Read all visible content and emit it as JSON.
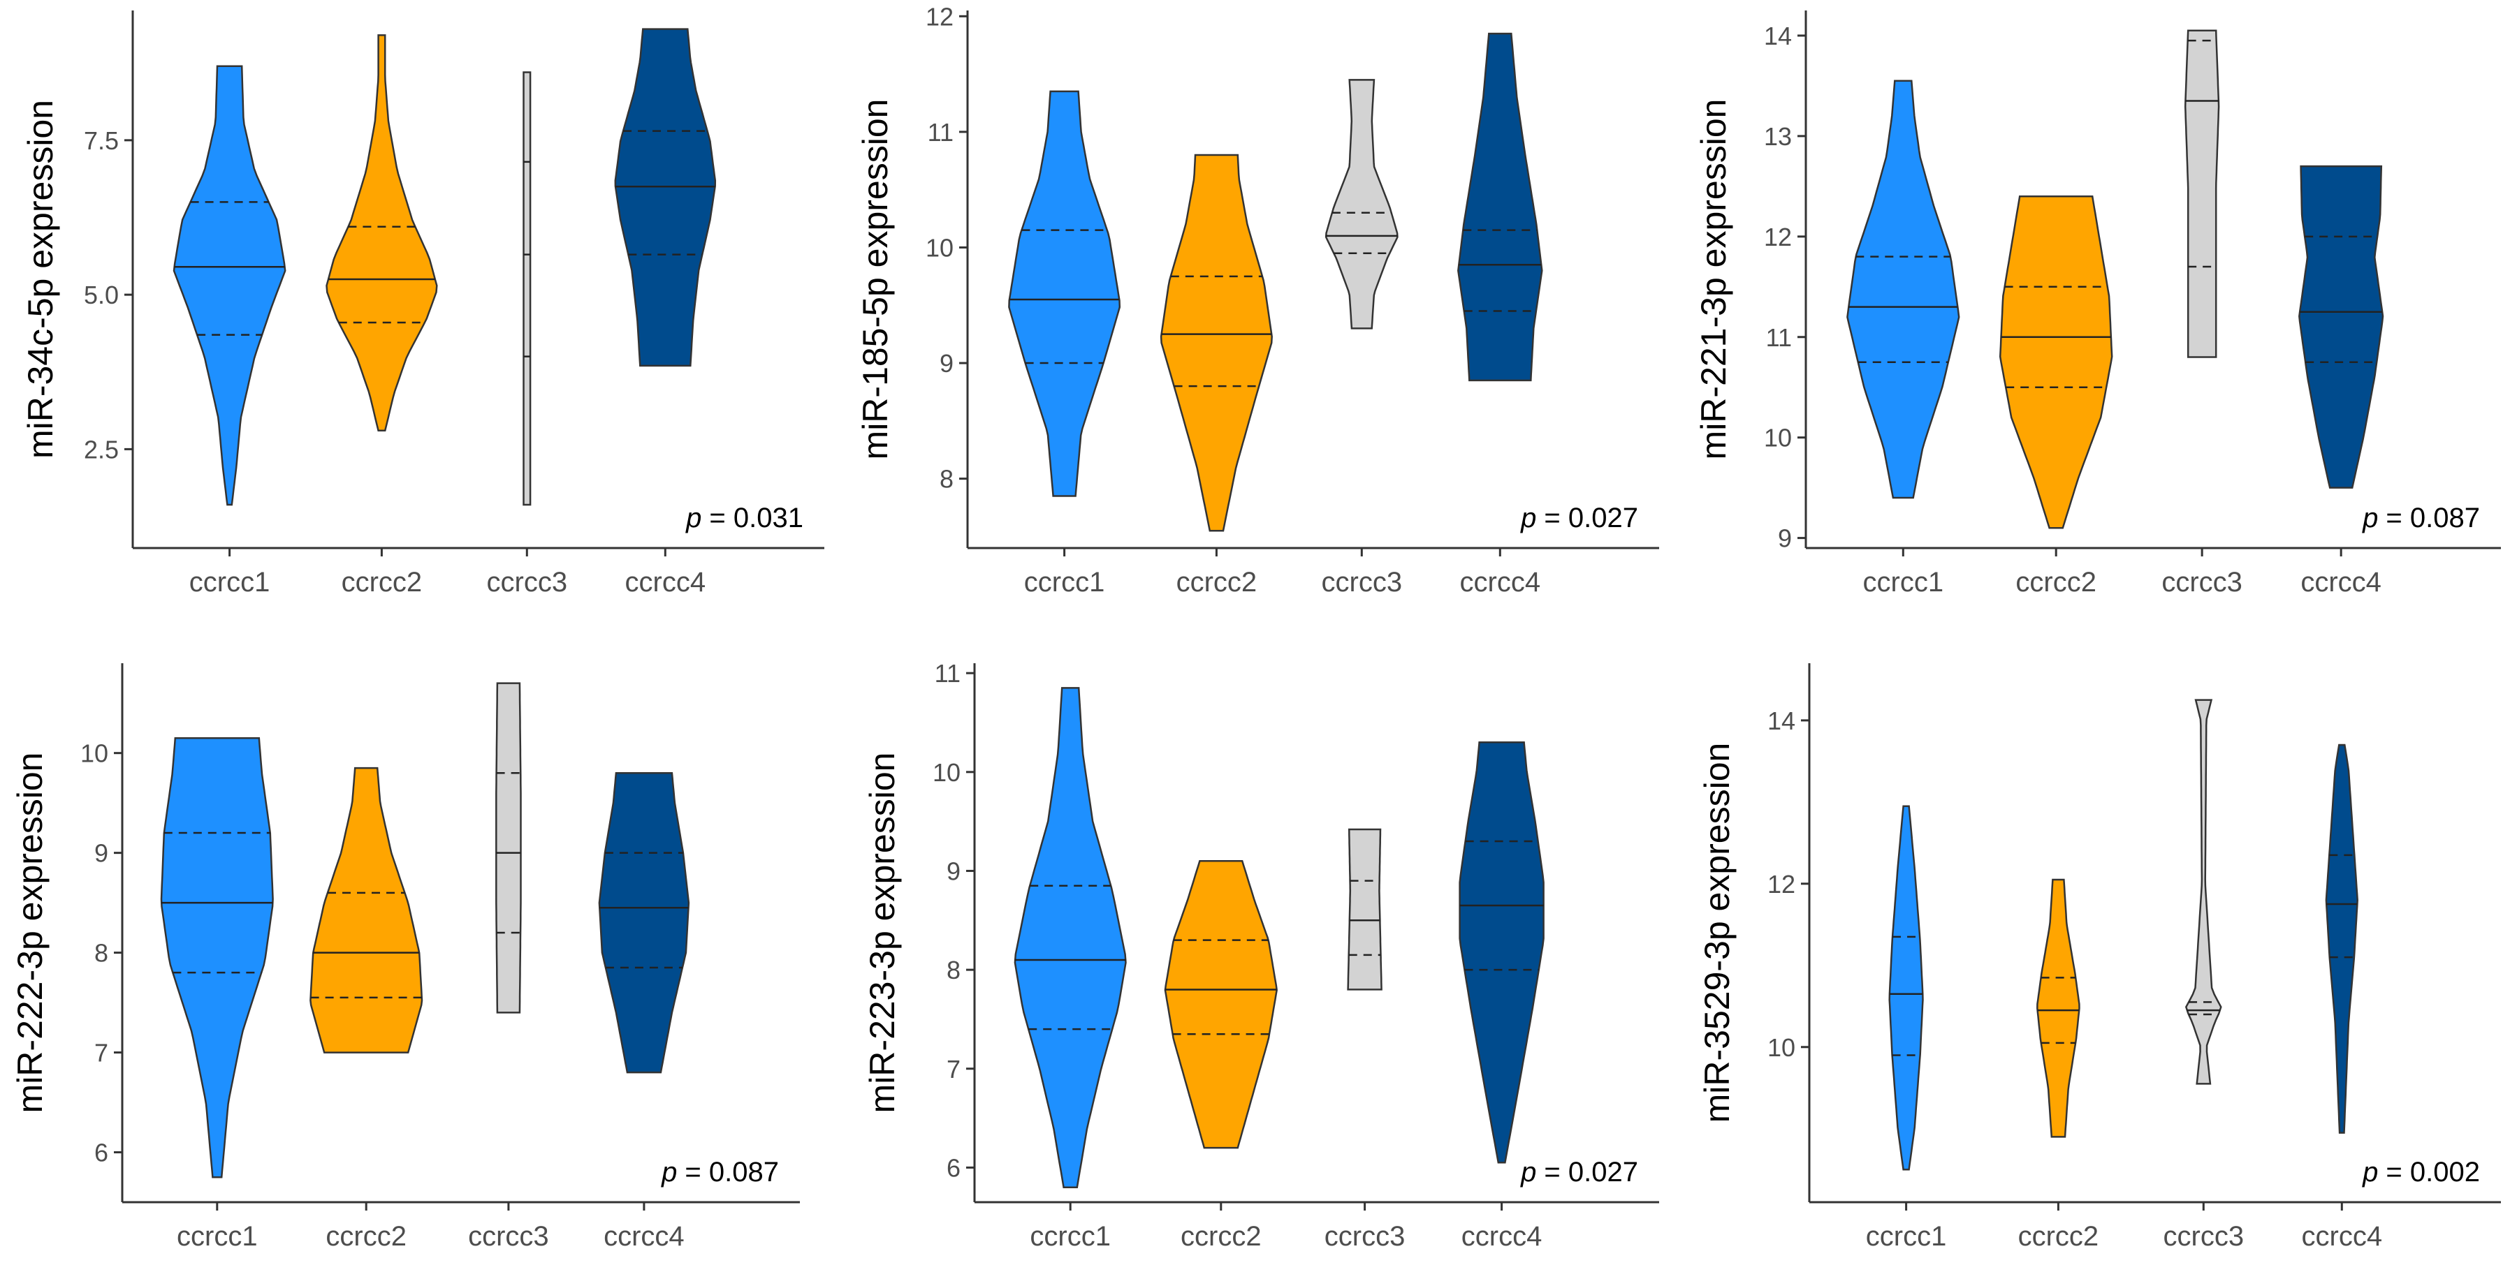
{
  "figure": {
    "groups": [
      "ccrcc1",
      "ccrcc2",
      "ccrcc3",
      "ccrcc4"
    ],
    "colors": {
      "ccrcc1": "#1e90ff",
      "ccrcc2": "#ffa500",
      "ccrcc3": "#d3d3d3",
      "ccrcc4": "#004b8d"
    }
  },
  "chart_data": [
    {
      "type": "violin",
      "ylabel": "miR-34c-5p expression",
      "yticks": [
        2.5,
        5.0,
        7.5
      ],
      "ytick_labels": [
        "2.5",
        "5.0",
        "7.5"
      ],
      "ylim": [
        0.9,
        9.6
      ],
      "p_label": "p",
      "p_value": "= 0.031",
      "violins": [
        {
          "group": "ccrcc1",
          "min": 1.6,
          "max": 8.7,
          "median": 5.45,
          "q1": 4.35,
          "q3": 6.5,
          "profile": [
            [
              1.6,
              0.04
            ],
            [
              2.2,
              0.12
            ],
            [
              3.0,
              0.2
            ],
            [
              4.0,
              0.45
            ],
            [
              4.8,
              0.75
            ],
            [
              5.4,
              1.0
            ],
            [
              6.2,
              0.85
            ],
            [
              7.0,
              0.45
            ],
            [
              7.8,
              0.25
            ],
            [
              8.7,
              0.22
            ]
          ]
        },
        {
          "group": "ccrcc2",
          "min": 2.8,
          "max": 9.2,
          "median": 5.25,
          "q1": 4.55,
          "q3": 6.1,
          "profile": [
            [
              2.8,
              0.06
            ],
            [
              3.4,
              0.22
            ],
            [
              4.0,
              0.45
            ],
            [
              4.6,
              0.8
            ],
            [
              5.1,
              1.0
            ],
            [
              5.6,
              0.85
            ],
            [
              6.2,
              0.55
            ],
            [
              7.0,
              0.28
            ],
            [
              7.8,
              0.12
            ],
            [
              8.5,
              0.06
            ],
            [
              9.2,
              0.06
            ]
          ]
        },
        {
          "group": "ccrcc3",
          "min": 1.6,
          "max": 8.6,
          "median": 5.65,
          "q1": 4.0,
          "q3": 7.15,
          "profile": [
            [
              1.6,
              0.06
            ],
            [
              8.6,
              0.06
            ]
          ]
        },
        {
          "group": "ccrcc4",
          "min": 3.85,
          "max": 9.3,
          "median": 6.75,
          "q1": 5.65,
          "q3": 7.65,
          "profile": [
            [
              3.85,
              0.45
            ],
            [
              4.6,
              0.5
            ],
            [
              5.4,
              0.6
            ],
            [
              6.2,
              0.8
            ],
            [
              6.8,
              0.9
            ],
            [
              7.5,
              0.8
            ],
            [
              8.3,
              0.55
            ],
            [
              8.8,
              0.45
            ],
            [
              9.3,
              0.4
            ]
          ]
        }
      ]
    },
    {
      "type": "violin",
      "ylabel": "miR-185-5p expression",
      "yticks": [
        8,
        9,
        10,
        11,
        12
      ],
      "ytick_labels": [
        "8",
        "9",
        "10",
        "11",
        "12"
      ],
      "ylim": [
        7.4,
        12.05
      ],
      "p_label": "p",
      "p_value": "= 0.027",
      "violins": [
        {
          "group": "ccrcc1",
          "min": 7.85,
          "max": 11.35,
          "median": 9.55,
          "q1": 9.0,
          "q3": 10.15,
          "profile": [
            [
              7.85,
              0.2
            ],
            [
              8.4,
              0.3
            ],
            [
              9.0,
              0.7
            ],
            [
              9.5,
              1.0
            ],
            [
              10.1,
              0.8
            ],
            [
              10.6,
              0.45
            ],
            [
              11.0,
              0.3
            ],
            [
              11.35,
              0.25
            ]
          ]
        },
        {
          "group": "ccrcc2",
          "min": 7.55,
          "max": 10.8,
          "median": 9.25,
          "q1": 8.8,
          "q3": 9.75,
          "profile": [
            [
              7.55,
              0.12
            ],
            [
              8.1,
              0.35
            ],
            [
              8.7,
              0.7
            ],
            [
              9.2,
              1.0
            ],
            [
              9.7,
              0.85
            ],
            [
              10.2,
              0.55
            ],
            [
              10.6,
              0.4
            ],
            [
              10.8,
              0.38
            ]
          ]
        },
        {
          "group": "ccrcc3",
          "min": 9.3,
          "max": 11.45,
          "median": 10.1,
          "q1": 9.95,
          "q3": 10.3,
          "profile": [
            [
              9.3,
              0.18
            ],
            [
              9.6,
              0.22
            ],
            [
              9.9,
              0.45
            ],
            [
              10.1,
              0.65
            ],
            [
              10.35,
              0.5
            ],
            [
              10.7,
              0.22
            ],
            [
              11.1,
              0.18
            ],
            [
              11.45,
              0.22
            ]
          ]
        },
        {
          "group": "ccrcc4",
          "min": 8.85,
          "max": 11.85,
          "median": 9.85,
          "q1": 9.45,
          "q3": 10.15,
          "profile": [
            [
              8.85,
              0.55
            ],
            [
              9.3,
              0.6
            ],
            [
              9.8,
              0.75
            ],
            [
              10.2,
              0.65
            ],
            [
              10.8,
              0.45
            ],
            [
              11.3,
              0.3
            ],
            [
              11.85,
              0.2
            ]
          ]
        }
      ]
    },
    {
      "type": "violin",
      "ylabel": "miR-221-3p expression",
      "yticks": [
        9,
        10,
        11,
        12,
        13,
        14
      ],
      "ytick_labels": [
        "9",
        "10",
        "11",
        "12",
        "13",
        "14"
      ],
      "ylim": [
        8.9,
        14.25
      ],
      "p_label": "p",
      "p_value": "= 0.087",
      "violins": [
        {
          "group": "ccrcc1",
          "min": 9.4,
          "max": 13.55,
          "median": 11.3,
          "q1": 10.75,
          "q3": 11.8,
          "profile": [
            [
              9.4,
              0.18
            ],
            [
              9.9,
              0.35
            ],
            [
              10.5,
              0.7
            ],
            [
              11.2,
              1.0
            ],
            [
              11.8,
              0.85
            ],
            [
              12.3,
              0.55
            ],
            [
              12.8,
              0.3
            ],
            [
              13.2,
              0.2
            ],
            [
              13.55,
              0.15
            ]
          ]
        },
        {
          "group": "ccrcc2",
          "min": 9.1,
          "max": 12.4,
          "median": 11.0,
          "q1": 10.5,
          "q3": 11.5,
          "profile": [
            [
              9.1,
              0.12
            ],
            [
              9.6,
              0.4
            ],
            [
              10.2,
              0.8
            ],
            [
              10.8,
              1.0
            ],
            [
              11.4,
              0.95
            ],
            [
              11.9,
              0.8
            ],
            [
              12.4,
              0.65
            ]
          ]
        },
        {
          "group": "ccrcc3",
          "min": 10.8,
          "max": 14.05,
          "median": 13.35,
          "q1": 11.7,
          "q3": 13.95,
          "profile": [
            [
              10.8,
              0.25
            ],
            [
              12.5,
              0.25
            ],
            [
              13.3,
              0.3
            ],
            [
              14.05,
              0.25
            ]
          ]
        },
        {
          "group": "ccrcc4",
          "min": 9.5,
          "max": 12.7,
          "median": 11.25,
          "q1": 10.75,
          "q3": 12.0,
          "profile": [
            [
              9.5,
              0.2
            ],
            [
              10.0,
              0.4
            ],
            [
              10.6,
              0.6
            ],
            [
              11.2,
              0.75
            ],
            [
              11.8,
              0.6
            ],
            [
              12.2,
              0.7
            ],
            [
              12.7,
              0.72
            ]
          ]
        }
      ]
    },
    {
      "type": "violin",
      "ylabel": "miR-222-3p expression",
      "yticks": [
        6,
        7,
        8,
        9,
        10
      ],
      "ytick_labels": [
        "6",
        "7",
        "8",
        "9",
        "10"
      ],
      "ylim": [
        5.5,
        10.9
      ],
      "p_label": "p",
      "p_value": "= 0.087",
      "violins": [
        {
          "group": "ccrcc1",
          "min": 5.75,
          "max": 10.15,
          "median": 8.5,
          "q1": 7.8,
          "q3": 9.2,
          "profile": [
            [
              5.75,
              0.08
            ],
            [
              6.5,
              0.2
            ],
            [
              7.2,
              0.45
            ],
            [
              7.9,
              0.85
            ],
            [
              8.5,
              1.0
            ],
            [
              9.2,
              0.95
            ],
            [
              9.8,
              0.8
            ],
            [
              10.15,
              0.75
            ]
          ]
        },
        {
          "group": "ccrcc2",
          "min": 7.0,
          "max": 9.85,
          "median": 8.0,
          "q1": 7.55,
          "q3": 8.6,
          "profile": [
            [
              7.0,
              0.75
            ],
            [
              7.5,
              1.0
            ],
            [
              8.0,
              0.95
            ],
            [
              8.5,
              0.75
            ],
            [
              9.0,
              0.45
            ],
            [
              9.5,
              0.25
            ],
            [
              9.85,
              0.2
            ]
          ]
        },
        {
          "group": "ccrcc3",
          "min": 7.4,
          "max": 10.7,
          "median": 9.0,
          "q1": 8.2,
          "q3": 9.8,
          "profile": [
            [
              7.4,
              0.2
            ],
            [
              8.5,
              0.22
            ],
            [
              9.6,
              0.22
            ],
            [
              10.7,
              0.2
            ]
          ]
        },
        {
          "group": "ccrcc4",
          "min": 6.8,
          "max": 9.8,
          "median": 8.45,
          "q1": 7.85,
          "q3": 9.0,
          "profile": [
            [
              6.8,
              0.3
            ],
            [
              7.4,
              0.5
            ],
            [
              8.0,
              0.75
            ],
            [
              8.5,
              0.8
            ],
            [
              9.0,
              0.7
            ],
            [
              9.5,
              0.55
            ],
            [
              9.8,
              0.5
            ]
          ]
        }
      ]
    },
    {
      "type": "violin",
      "ylabel": "miR-223-3p expression",
      "yticks": [
        6,
        7,
        8,
        9,
        10,
        11
      ],
      "ytick_labels": [
        "6",
        "7",
        "8",
        "9",
        "10",
        "11"
      ],
      "ylim": [
        5.65,
        11.1
      ],
      "p_label": "p",
      "p_value": "= 0.027",
      "violins": [
        {
          "group": "ccrcc1",
          "min": 5.8,
          "max": 10.85,
          "median": 8.1,
          "q1": 7.4,
          "q3": 8.85,
          "profile": [
            [
              5.8,
              0.12
            ],
            [
              6.4,
              0.3
            ],
            [
              7.0,
              0.55
            ],
            [
              7.6,
              0.85
            ],
            [
              8.1,
              1.0
            ],
            [
              8.8,
              0.75
            ],
            [
              9.5,
              0.4
            ],
            [
              10.2,
              0.22
            ],
            [
              10.85,
              0.15
            ]
          ]
        },
        {
          "group": "ccrcc2",
          "min": 6.2,
          "max": 9.1,
          "median": 7.8,
          "q1": 7.35,
          "q3": 8.3,
          "profile": [
            [
              6.2,
              0.3
            ],
            [
              6.7,
              0.55
            ],
            [
              7.3,
              0.85
            ],
            [
              7.8,
              1.0
            ],
            [
              8.3,
              0.85
            ],
            [
              8.7,
              0.6
            ],
            [
              9.1,
              0.38
            ]
          ]
        },
        {
          "group": "ccrcc3",
          "min": 7.8,
          "max": 9.42,
          "median": 8.5,
          "q1": 8.15,
          "q3": 8.9,
          "profile": [
            [
              7.8,
              0.3
            ],
            [
              8.3,
              0.28
            ],
            [
              8.8,
              0.26
            ],
            [
              9.42,
              0.28
            ]
          ]
        },
        {
          "group": "ccrcc4",
          "min": 6.05,
          "max": 10.3,
          "median": 8.65,
          "q1": 8.0,
          "q3": 9.3,
          "profile": [
            [
              6.05,
              0.06
            ],
            [
              6.8,
              0.3
            ],
            [
              7.6,
              0.55
            ],
            [
              8.3,
              0.75
            ],
            [
              8.9,
              0.75
            ],
            [
              9.5,
              0.6
            ],
            [
              10.0,
              0.45
            ],
            [
              10.3,
              0.4
            ]
          ]
        }
      ]
    },
    {
      "type": "violin",
      "ylabel": "miR-3529-3p expression",
      "yticks": [
        10,
        12,
        14
      ],
      "ytick_labels": [
        "10",
        "12",
        "14"
      ],
      "ylim": [
        8.1,
        14.7
      ],
      "p_label": "p",
      "p_value": "= 0.002",
      "violins": [
        {
          "group": "ccrcc1",
          "min": 8.5,
          "max": 12.95,
          "median": 10.65,
          "q1": 9.9,
          "q3": 11.35,
          "profile": [
            [
              8.5,
              0.05
            ],
            [
              9.0,
              0.15
            ],
            [
              9.9,
              0.25
            ],
            [
              10.6,
              0.3
            ],
            [
              11.3,
              0.25
            ],
            [
              12.2,
              0.15
            ],
            [
              12.95,
              0.05
            ]
          ]
        },
        {
          "group": "ccrcc2",
          "min": 8.9,
          "max": 12.05,
          "median": 10.45,
          "q1": 10.05,
          "q3": 10.85,
          "profile": [
            [
              8.9,
              0.12
            ],
            [
              9.5,
              0.18
            ],
            [
              10.1,
              0.32
            ],
            [
              10.5,
              0.38
            ],
            [
              10.9,
              0.3
            ],
            [
              11.5,
              0.15
            ],
            [
              12.05,
              0.1
            ]
          ]
        },
        {
          "group": "ccrcc3",
          "min": 9.55,
          "max": 14.25,
          "median": 10.45,
          "q1": 10.4,
          "q3": 10.55,
          "profile": [
            [
              9.55,
              0.12
            ],
            [
              10.0,
              0.05
            ],
            [
              10.3,
              0.2
            ],
            [
              10.48,
              0.32
            ],
            [
              10.7,
              0.15
            ],
            [
              12.0,
              0.03
            ],
            [
              14.0,
              0.05
            ],
            [
              14.25,
              0.14
            ]
          ]
        },
        {
          "group": "ccrcc4",
          "min": 8.95,
          "max": 13.7,
          "median": 11.75,
          "q1": 11.1,
          "q3": 12.35,
          "profile": [
            [
              8.95,
              0.04
            ],
            [
              10.3,
              0.12
            ],
            [
              11.1,
              0.22
            ],
            [
              11.8,
              0.28
            ],
            [
              12.6,
              0.2
            ],
            [
              13.4,
              0.12
            ],
            [
              13.7,
              0.05
            ]
          ]
        }
      ]
    }
  ]
}
